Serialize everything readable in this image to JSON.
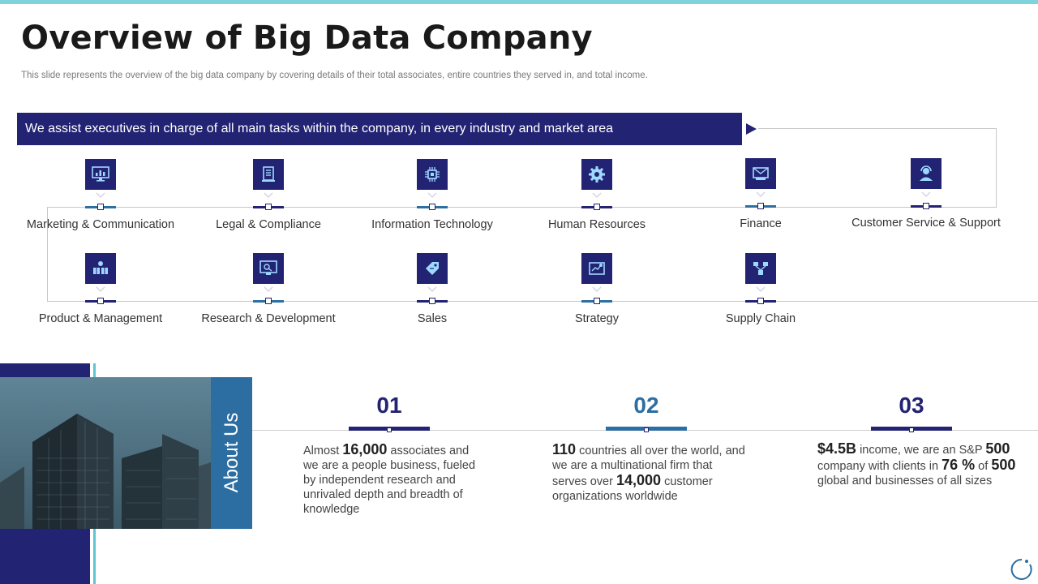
{
  "title": "Overview of Big Data Company",
  "subtitle": "This slide represents the overview of the big data company by covering details of their total associates, entire countries they served in, and total income.",
  "banner": "We assist executives in charge of all main tasks within the company, in every industry and market area",
  "functions_row1": [
    {
      "label": "Marketing & Communication",
      "icon": "monitor-chart-icon"
    },
    {
      "label": "Legal & Compliance",
      "icon": "document-icon"
    },
    {
      "label": "Information Technology",
      "icon": "chip-icon"
    },
    {
      "label": "Human Resources",
      "icon": "gear-icon"
    },
    {
      "label": "Finance",
      "icon": "money-icon"
    },
    {
      "label": "Customer Service & Support",
      "icon": "support-agent-icon"
    }
  ],
  "functions_row2": [
    {
      "label": "Product & Management",
      "icon": "boxes-gear-icon"
    },
    {
      "label": "Research & Development",
      "icon": "research-monitor-icon"
    },
    {
      "label": "Sales",
      "icon": "price-tag-icon"
    },
    {
      "label": "Strategy",
      "icon": "strategy-board-icon"
    },
    {
      "label": "Supply Chain",
      "icon": "supply-chain-icon"
    }
  ],
  "about": {
    "label": "About Us",
    "stats": [
      {
        "number": "01",
        "color": "#232374",
        "segments": [
          [
            "t",
            "Almost "
          ],
          [
            "b",
            "16,000"
          ],
          [
            "t",
            " associates and we are a people business, fueled by independent research and unrivaled depth and breadth of knowledge"
          ]
        ]
      },
      {
        "number": "02",
        "color": "#2c6ea2",
        "segments": [
          [
            "b",
            "110"
          ],
          [
            "t",
            " countries all over the world, and we are a multinational firm that serves over "
          ],
          [
            "b",
            "14,000"
          ],
          [
            "t",
            " customer organizations worldwide"
          ]
        ]
      },
      {
        "number": "03",
        "color": "#232374",
        "segments": [
          [
            "b",
            "$4.5B"
          ],
          [
            "t",
            " income, we are an S&P "
          ],
          [
            "b",
            "500"
          ],
          [
            "t",
            " company with clients in "
          ],
          [
            "b",
            "76 %"
          ],
          [
            "t",
            " of "
          ],
          [
            "b",
            "500"
          ],
          [
            "t",
            " global and businesses of all sizes"
          ]
        ]
      }
    ]
  },
  "colors": {
    "primary": "#232374",
    "accent": "#2c6ea2",
    "teal": "#5ec6cf"
  }
}
